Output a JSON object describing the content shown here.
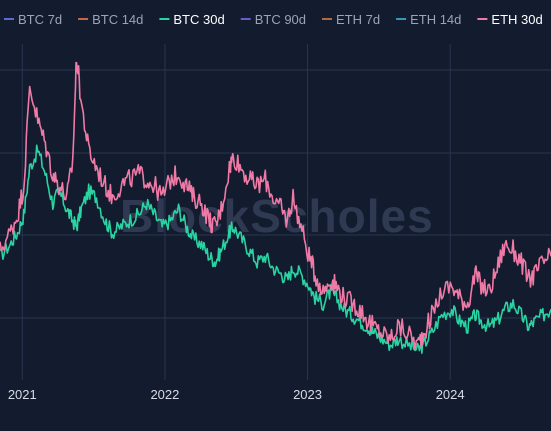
{
  "chart_data": {
    "type": "line",
    "watermark": "BlockScholes",
    "legend_placement": "top",
    "grid": true,
    "x_ticks": [
      "2021",
      "2022",
      "2023",
      "2024"
    ],
    "x_tick_dates": [
      "2021-01-01",
      "2022-01-01",
      "2023-01-01",
      "2024-01-01"
    ],
    "xlim": [
      "2020-11-05",
      "2024-09-15"
    ],
    "ylim": [
      18,
      132
    ],
    "series": [
      {
        "name": "BTC 7d",
        "color": "#5b6bd0",
        "visible": false
      },
      {
        "name": "BTC 14d",
        "color": "#c7654a",
        "visible": false
      },
      {
        "name": "BTC 30d",
        "color": "#29d3a2",
        "visible": true,
        "x": [
          "2020-11-05",
          "2020-12-01",
          "2020-12-20",
          "2021-01-05",
          "2021-01-20",
          "2021-02-10",
          "2021-03-01",
          "2021-03-20",
          "2021-04-05",
          "2021-04-25",
          "2021-05-10",
          "2021-05-20",
          "2021-06-01",
          "2021-06-20",
          "2021-07-10",
          "2021-08-01",
          "2021-08-20",
          "2021-09-10",
          "2021-10-01",
          "2021-10-25",
          "2021-11-15",
          "2021-12-05",
          "2021-12-25",
          "2022-01-15",
          "2022-02-05",
          "2022-02-25",
          "2022-03-15",
          "2022-04-05",
          "2022-04-25",
          "2022-05-10",
          "2022-05-25",
          "2022-06-15",
          "2022-06-25",
          "2022-07-15",
          "2022-08-05",
          "2022-08-25",
          "2022-09-15",
          "2022-10-05",
          "2022-10-25",
          "2022-11-10",
          "2022-11-25",
          "2022-12-15",
          "2023-01-05",
          "2023-01-20",
          "2023-02-10",
          "2023-03-01",
          "2023-03-15",
          "2023-04-05",
          "2023-04-25",
          "2023-05-15",
          "2023-06-05",
          "2023-06-20",
          "2023-07-10",
          "2023-08-01",
          "2023-08-20",
          "2023-09-15",
          "2023-10-10",
          "2023-10-25",
          "2023-11-15",
          "2023-12-10",
          "2024-01-05",
          "2024-01-25",
          "2024-02-15",
          "2024-03-05",
          "2024-03-20",
          "2024-04-10",
          "2024-04-30",
          "2024-05-20",
          "2024-06-10",
          "2024-07-01",
          "2024-07-20",
          "2024-08-05",
          "2024-08-25",
          "2024-09-15"
        ],
        "values": [
          60,
          64,
          68,
          74,
          90,
          96,
          88,
          78,
          82,
          76,
          72,
          70,
          76,
          82,
          80,
          72,
          68,
          70,
          72,
          74,
          78,
          74,
          70,
          72,
          76,
          70,
          66,
          64,
          60,
          58,
          62,
          68,
          70,
          66,
          62,
          58,
          60,
          56,
          54,
          52,
          56,
          54,
          50,
          46,
          44,
          48,
          46,
          42,
          40,
          38,
          36,
          34,
          32,
          30,
          32,
          30,
          28,
          30,
          34,
          40,
          42,
          38,
          36,
          40,
          38,
          36,
          38,
          42,
          44,
          40,
          36,
          38,
          40,
          42
        ]
      },
      {
        "name": "BTC 90d",
        "color": "#6b5bc7",
        "visible": false
      },
      {
        "name": "ETH 7d",
        "color": "#b06a42",
        "visible": false
      },
      {
        "name": "ETH 14d",
        "color": "#3a97b8",
        "visible": false
      },
      {
        "name": "ETH 30d",
        "color": "#f07aa6",
        "visible": true,
        "x": [
          "2020-11-05",
          "2020-12-01",
          "2020-12-20",
          "2021-01-05",
          "2021-01-20",
          "2021-02-10",
          "2021-03-01",
          "2021-03-20",
          "2021-04-05",
          "2021-04-25",
          "2021-05-10",
          "2021-05-20",
          "2021-06-01",
          "2021-06-20",
          "2021-07-10",
          "2021-08-01",
          "2021-08-20",
          "2021-09-10",
          "2021-10-01",
          "2021-10-25",
          "2021-11-15",
          "2021-12-05",
          "2021-12-25",
          "2022-01-15",
          "2022-02-05",
          "2022-02-25",
          "2022-03-15",
          "2022-04-05",
          "2022-04-25",
          "2022-05-10",
          "2022-05-25",
          "2022-06-15",
          "2022-06-25",
          "2022-07-15",
          "2022-08-05",
          "2022-08-25",
          "2022-09-15",
          "2022-10-05",
          "2022-10-25",
          "2022-11-10",
          "2022-11-25",
          "2022-12-15",
          "2023-01-05",
          "2023-01-20",
          "2023-02-10",
          "2023-03-01",
          "2023-03-15",
          "2023-04-05",
          "2023-04-25",
          "2023-05-15",
          "2023-06-05",
          "2023-06-20",
          "2023-07-10",
          "2023-08-01",
          "2023-08-20",
          "2023-09-15",
          "2023-10-10",
          "2023-10-25",
          "2023-11-15",
          "2023-12-10",
          "2024-01-05",
          "2024-01-25",
          "2024-02-15",
          "2024-03-05",
          "2024-03-20",
          "2024-04-10",
          "2024-04-30",
          "2024-05-20",
          "2024-06-10",
          "2024-07-01",
          "2024-07-20",
          "2024-08-05",
          "2024-08-25",
          "2024-09-15"
        ],
        "values": [
          62,
          68,
          74,
          84,
          118,
          106,
          98,
          88,
          84,
          80,
          92,
          128,
          112,
          96,
          90,
          84,
          80,
          84,
          86,
          88,
          86,
          84,
          80,
          86,
          88,
          84,
          80,
          78,
          72,
          70,
          76,
          90,
          94,
          90,
          86,
          84,
          86,
          80,
          76,
          72,
          80,
          70,
          60,
          54,
          48,
          52,
          50,
          46,
          44,
          42,
          38,
          36,
          34,
          32,
          36,
          34,
          30,
          34,
          40,
          48,
          50,
          46,
          44,
          54,
          50,
          48,
          56,
          64,
          62,
          58,
          52,
          54,
          58,
          60
        ]
      }
    ]
  }
}
